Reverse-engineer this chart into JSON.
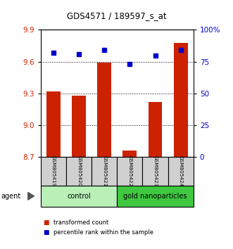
{
  "title": "GDS4571 / 189597_s_at",
  "samples": [
    "GSM805419",
    "GSM805420",
    "GSM805421",
    "GSM805422",
    "GSM805423",
    "GSM805424"
  ],
  "red_values": [
    9.32,
    9.28,
    9.59,
    8.76,
    9.22,
    9.78
  ],
  "blue_values": [
    82,
    81,
    84,
    73,
    80,
    84
  ],
  "y_min": 8.7,
  "y_max": 9.9,
  "y_ticks": [
    8.7,
    9.0,
    9.3,
    9.6,
    9.9
  ],
  "y_right_ticks": [
    0,
    25,
    50,
    75,
    100
  ],
  "y_right_labels": [
    "0",
    "25",
    "50",
    "75",
    "100%"
  ],
  "groups": [
    {
      "label": "control",
      "color": "#b8f0b8",
      "n": 3
    },
    {
      "label": "gold nanoparticles",
      "color": "#40c840",
      "n": 3
    }
  ],
  "agent_label": "agent",
  "legend_red": "transformed count",
  "legend_blue": "percentile rank within the sample",
  "bar_color": "#cc2200",
  "dot_color": "#0000cc",
  "bar_width": 0.55,
  "tick_label_color_left": "#cc2200",
  "tick_label_color_right": "#0000cc",
  "sample_box_color": "#d0d0d0"
}
